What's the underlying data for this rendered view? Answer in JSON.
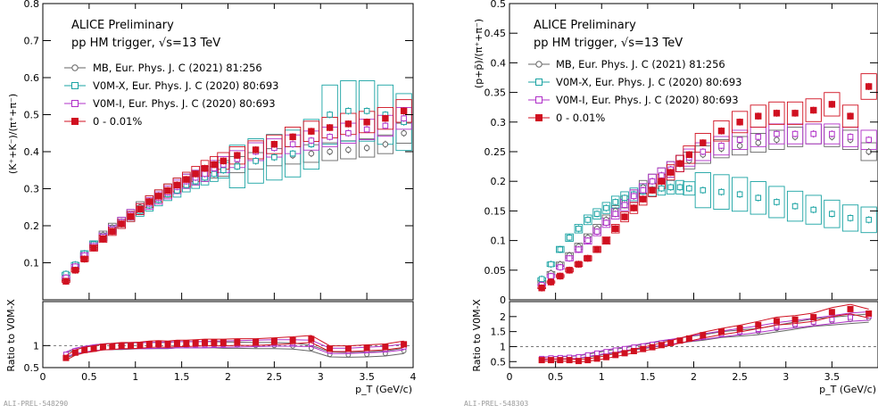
{
  "colors": {
    "mb": "#666666",
    "v0mx": "#1aa3a3",
    "v0mi": "#b030c8",
    "hm": "#d01020",
    "ref": "#777777"
  },
  "chart_data": [
    {
      "type": "scatter",
      "title": "ALICE Preliminary",
      "subtitle": "pp HM trigger, √s=13 TeV",
      "ylabel": "(K⁺+K⁻)/(π⁺+π⁻)",
      "xlabel": "p_T (GeV/c)",
      "xlim": [
        0,
        4
      ],
      "ylim": [
        0,
        0.8
      ],
      "xticks": [
        "0",
        "0.5",
        "1",
        "1.5",
        "2",
        "2.5",
        "3",
        "3.5",
        "4"
      ],
      "yticks": [
        "0.1",
        "0.2",
        "0.3",
        "0.4",
        "0.5",
        "0.6",
        "0.7",
        "0.8"
      ],
      "preliminary_id": "ALI-PREL-548290",
      "series": [
        {
          "name": "MB, Eur. Phys. J. C (2021) 81:256",
          "key": "mb",
          "x": [
            0.25,
            0.35,
            0.45,
            0.55,
            0.65,
            0.75,
            0.85,
            0.95,
            1.05,
            1.15,
            1.25,
            1.35,
            1.45,
            1.55,
            1.65,
            1.75,
            1.85,
            1.95,
            2.1,
            2.3,
            2.5,
            2.7,
            2.9,
            3.1,
            3.3,
            3.5,
            3.7,
            3.9
          ],
          "y": [
            0.055,
            0.09,
            0.12,
            0.15,
            0.175,
            0.195,
            0.21,
            0.23,
            0.25,
            0.265,
            0.28,
            0.295,
            0.31,
            0.32,
            0.33,
            0.34,
            0.35,
            0.355,
            0.365,
            0.375,
            0.385,
            0.39,
            0.395,
            0.4,
            0.405,
            0.41,
            0.42,
            0.45
          ]
        },
        {
          "name": "V0M-X,  Eur. Phys. J. C (2020) 80:693",
          "key": "v0mx",
          "x": [
            0.25,
            0.35,
            0.45,
            0.55,
            0.65,
            0.75,
            0.85,
            0.95,
            1.05,
            1.15,
            1.25,
            1.35,
            1.45,
            1.55,
            1.65,
            1.75,
            1.85,
            1.95,
            2.1,
            2.3,
            2.5,
            2.7,
            2.9,
            3.1,
            3.3,
            3.5,
            3.7,
            3.9
          ],
          "y": [
            0.07,
            0.095,
            0.125,
            0.15,
            0.17,
            0.19,
            0.205,
            0.225,
            0.24,
            0.255,
            0.27,
            0.285,
            0.295,
            0.31,
            0.32,
            0.33,
            0.34,
            0.35,
            0.36,
            0.375,
            0.385,
            0.395,
            0.42,
            0.5,
            0.51,
            0.51,
            0.5,
            0.48
          ]
        },
        {
          "name": "V0M-I, Eur. Phys. J. C (2020) 80:693",
          "key": "v0mi",
          "x": [
            0.25,
            0.35,
            0.45,
            0.55,
            0.65,
            0.75,
            0.85,
            0.95,
            1.05,
            1.15,
            1.25,
            1.35,
            1.45,
            1.55,
            1.65,
            1.75,
            1.85,
            1.95,
            2.1,
            2.3,
            2.5,
            2.7,
            2.9,
            3.1,
            3.3,
            3.5,
            3.7,
            3.9
          ],
          "y": [
            0.06,
            0.09,
            0.12,
            0.145,
            0.17,
            0.19,
            0.21,
            0.23,
            0.245,
            0.26,
            0.275,
            0.29,
            0.305,
            0.32,
            0.33,
            0.34,
            0.355,
            0.365,
            0.38,
            0.4,
            0.41,
            0.42,
            0.43,
            0.44,
            0.45,
            0.46,
            0.47,
            0.49
          ]
        },
        {
          "name": "0 - 0.01%",
          "key": "hm",
          "x": [
            0.25,
            0.35,
            0.45,
            0.55,
            0.65,
            0.75,
            0.85,
            0.95,
            1.05,
            1.15,
            1.25,
            1.35,
            1.45,
            1.55,
            1.65,
            1.75,
            1.85,
            1.95,
            2.1,
            2.3,
            2.5,
            2.7,
            2.9,
            3.1,
            3.3,
            3.5,
            3.7,
            3.9
          ],
          "y": [
            0.05,
            0.08,
            0.11,
            0.14,
            0.165,
            0.185,
            0.205,
            0.225,
            0.245,
            0.265,
            0.28,
            0.295,
            0.31,
            0.325,
            0.34,
            0.355,
            0.365,
            0.375,
            0.39,
            0.405,
            0.42,
            0.44,
            0.455,
            0.465,
            0.475,
            0.48,
            0.49,
            0.51
          ]
        }
      ],
      "ratio_panel": {
        "ylabel": "Ratio to V0M-X",
        "ylim": [
          0.5,
          2.0
        ],
        "yticks": [
          "0.5",
          "1"
        ],
        "reference_line": 1,
        "series": [
          {
            "key": "mb",
            "y": [
              0.78,
              0.85,
              0.9,
              0.95,
              0.97,
              0.98,
              0.98,
              0.99,
              1.0,
              1.0,
              1.0,
              1.0,
              1.02,
              1.02,
              1.02,
              1.02,
              1.02,
              1.01,
              1.01,
              1.0,
              1.0,
              0.99,
              0.94,
              0.8,
              0.79,
              0.8,
              0.82,
              0.88
            ]
          },
          {
            "key": "v0mi",
            "y": [
              0.8,
              0.88,
              0.92,
              0.95,
              0.97,
              0.98,
              0.99,
              1.0,
              1.0,
              1.0,
              1.01,
              1.01,
              1.02,
              1.02,
              1.02,
              1.02,
              1.03,
              1.03,
              1.04,
              1.05,
              1.06,
              1.06,
              1.05,
              0.88,
              0.88,
              0.9,
              0.92,
              0.97
            ]
          },
          {
            "key": "hm",
            "y": [
              0.72,
              0.84,
              0.9,
              0.93,
              0.97,
              0.98,
              1.0,
              1.0,
              1.01,
              1.03,
              1.04,
              1.03,
              1.05,
              1.05,
              1.06,
              1.07,
              1.07,
              1.07,
              1.08,
              1.08,
              1.1,
              1.12,
              1.15,
              0.93,
              0.93,
              0.95,
              0.97,
              1.03
            ]
          }
        ]
      }
    },
    {
      "type": "scatter",
      "title": "ALICE Preliminary",
      "subtitle": "pp HM trigger, √s=13 TeV",
      "ylabel": "(p+p̄)/(π⁺+π⁻)",
      "xlabel": "p_T (GeV/c)",
      "xlim": [
        0,
        4
      ],
      "ylim": [
        0,
        0.5
      ],
      "xticks": [
        "0",
        "0.5",
        "1",
        "1.5",
        "2",
        "2.5",
        "3",
        "3.5",
        "4"
      ],
      "yticks": [
        "0",
        "0.05",
        "0.1",
        "0.15",
        "0.2",
        "0.25",
        "0.3",
        "0.35",
        "0.4",
        "0.45",
        "0.5"
      ],
      "preliminary_id": "ALI-PREL-548303",
      "series": [
        {
          "name": "MB, Eur. Phys. J. C (2021) 81:256",
          "key": "mb",
          "x": [
            0.35,
            0.45,
            0.55,
            0.65,
            0.75,
            0.85,
            0.95,
            1.05,
            1.15,
            1.25,
            1.35,
            1.45,
            1.55,
            1.65,
            1.75,
            1.85,
            1.95,
            2.1,
            2.3,
            2.5,
            2.7,
            2.9,
            3.1,
            3.3,
            3.5,
            3.7,
            3.9
          ],
          "y": [
            0.03,
            0.045,
            0.06,
            0.075,
            0.09,
            0.105,
            0.12,
            0.135,
            0.15,
            0.165,
            0.175,
            0.19,
            0.2,
            0.21,
            0.22,
            0.23,
            0.235,
            0.245,
            0.255,
            0.26,
            0.265,
            0.27,
            0.275,
            0.28,
            0.275,
            0.27,
            0.25
          ]
        },
        {
          "name": "V0M-X,  Eur. Phys. J. C (2020) 80:693",
          "key": "v0mx",
          "x": [
            0.35,
            0.45,
            0.55,
            0.65,
            0.75,
            0.85,
            0.95,
            1.05,
            1.15,
            1.25,
            1.35,
            1.45,
            1.55,
            1.65,
            1.75,
            1.85,
            1.95,
            2.1,
            2.3,
            2.5,
            2.7,
            2.9,
            3.1,
            3.3,
            3.5,
            3.7,
            3.9
          ],
          "y": [
            0.035,
            0.06,
            0.085,
            0.105,
            0.12,
            0.135,
            0.145,
            0.155,
            0.165,
            0.172,
            0.178,
            0.183,
            0.186,
            0.188,
            0.19,
            0.19,
            0.188,
            0.185,
            0.182,
            0.178,
            0.172,
            0.165,
            0.158,
            0.152,
            0.145,
            0.138,
            0.135
          ]
        },
        {
          "name": "V0M-I, Eur. Phys. J. C (2020) 80:693",
          "key": "v0mi",
          "x": [
            0.35,
            0.45,
            0.55,
            0.65,
            0.75,
            0.85,
            0.95,
            1.05,
            1.15,
            1.25,
            1.35,
            1.45,
            1.55,
            1.65,
            1.75,
            1.85,
            1.95,
            2.1,
            2.3,
            2.5,
            2.7,
            2.9,
            3.1,
            3.3,
            3.5,
            3.7,
            3.9
          ],
          "y": [
            0.025,
            0.04,
            0.055,
            0.07,
            0.085,
            0.1,
            0.115,
            0.13,
            0.145,
            0.16,
            0.175,
            0.185,
            0.2,
            0.21,
            0.22,
            0.23,
            0.24,
            0.25,
            0.26,
            0.27,
            0.275,
            0.28,
            0.28,
            0.28,
            0.28,
            0.275,
            0.27
          ]
        },
        {
          "name": "0 - 0.01%",
          "key": "hm",
          "x": [
            0.35,
            0.45,
            0.55,
            0.65,
            0.75,
            0.85,
            0.95,
            1.05,
            1.15,
            1.25,
            1.35,
            1.45,
            1.55,
            1.65,
            1.75,
            1.85,
            1.95,
            2.1,
            2.3,
            2.5,
            2.7,
            2.9,
            3.1,
            3.3,
            3.5,
            3.7,
            3.9
          ],
          "y": [
            0.02,
            0.03,
            0.04,
            0.05,
            0.06,
            0.07,
            0.085,
            0.1,
            0.12,
            0.14,
            0.155,
            0.17,
            0.185,
            0.2,
            0.215,
            0.23,
            0.245,
            0.265,
            0.285,
            0.3,
            0.31,
            0.315,
            0.315,
            0.32,
            0.33,
            0.31,
            0.36
          ]
        }
      ],
      "ratio_panel": {
        "ylabel": "Ratio to V0M-X",
        "ylim": [
          0.3,
          2.5
        ],
        "yticks": [
          "0.5",
          "1",
          "1.5",
          "2"
        ],
        "reference_line": 1,
        "series": [
          {
            "key": "mb",
            "y": [
              0.6,
              0.62,
              0.62,
              0.63,
              0.65,
              0.7,
              0.75,
              0.8,
              0.85,
              0.9,
              0.95,
              1.0,
              1.05,
              1.1,
              1.15,
              1.2,
              1.25,
              1.3,
              1.4,
              1.45,
              1.5,
              1.6,
              1.7,
              1.8,
              1.85,
              1.9,
              1.95
            ]
          },
          {
            "key": "v0mi",
            "y": [
              0.6,
              0.62,
              0.63,
              0.64,
              0.66,
              0.72,
              0.78,
              0.83,
              0.88,
              0.93,
              0.98,
              1.02,
              1.07,
              1.12,
              1.16,
              1.2,
              1.26,
              1.33,
              1.42,
              1.5,
              1.58,
              1.68,
              1.75,
              1.82,
              1.9,
              1.98,
              2.02
            ]
          },
          {
            "key": "hm",
            "y": [
              0.55,
              0.55,
              0.55,
              0.55,
              0.52,
              0.55,
              0.6,
              0.65,
              0.72,
              0.78,
              0.85,
              0.92,
              0.98,
              1.05,
              1.12,
              1.2,
              1.27,
              1.38,
              1.5,
              1.6,
              1.72,
              1.85,
              1.9,
              1.98,
              2.15,
              2.25,
              2.1
            ]
          }
        ]
      }
    }
  ]
}
